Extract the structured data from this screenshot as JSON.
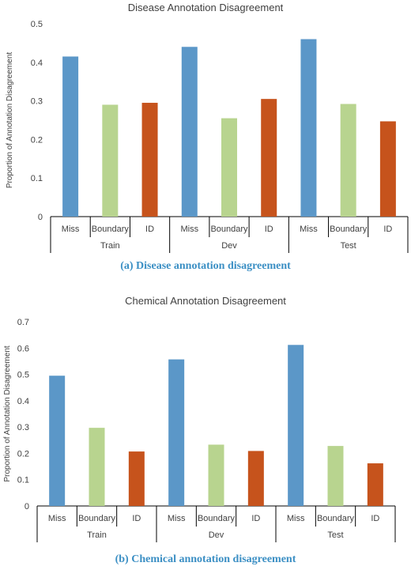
{
  "chart_data": [
    {
      "type": "bar",
      "title": "Disease Annotation Disagreement",
      "ylabel": "Proportion of Annotation Disagreement",
      "ylim": [
        0,
        0.5
      ],
      "yticks": [
        0,
        0.1,
        0.2,
        0.3,
        0.4,
        0.5
      ],
      "groups": [
        "Train",
        "Dev",
        "Test"
      ],
      "categories": [
        "Miss",
        "Boundary",
        "ID"
      ],
      "series": [
        {
          "name": "Miss",
          "color": "#5b97c8",
          "values": [
            0.415,
            0.44,
            0.46
          ]
        },
        {
          "name": "Boundary",
          "color": "#b8d48f",
          "values": [
            0.29,
            0.255,
            0.292
          ]
        },
        {
          "name": "ID",
          "color": "#c6531c",
          "values": [
            0.295,
            0.305,
            0.247
          ]
        }
      ],
      "caption": "(a) Disease annotation disagreement"
    },
    {
      "type": "bar",
      "title": "Chemical Annotation Disagreement",
      "ylabel": "Proportion of Annotation  Disagreement",
      "ylim": [
        0,
        0.7
      ],
      "yticks": [
        0,
        0.1,
        0.2,
        0.3,
        0.4,
        0.5,
        0.6,
        0.7
      ],
      "groups": [
        "Train",
        "Dev",
        "Test"
      ],
      "categories": [
        "Miss",
        "Boundary",
        "ID"
      ],
      "series": [
        {
          "name": "Miss",
          "color": "#5b97c8",
          "values": [
            0.495,
            0.557,
            0.612
          ]
        },
        {
          "name": "Boundary",
          "color": "#b8d48f",
          "values": [
            0.297,
            0.233,
            0.228
          ]
        },
        {
          "name": "ID",
          "color": "#c6531c",
          "values": [
            0.207,
            0.209,
            0.162
          ]
        }
      ],
      "caption": "(b) Chemical annotation disagreement"
    }
  ]
}
